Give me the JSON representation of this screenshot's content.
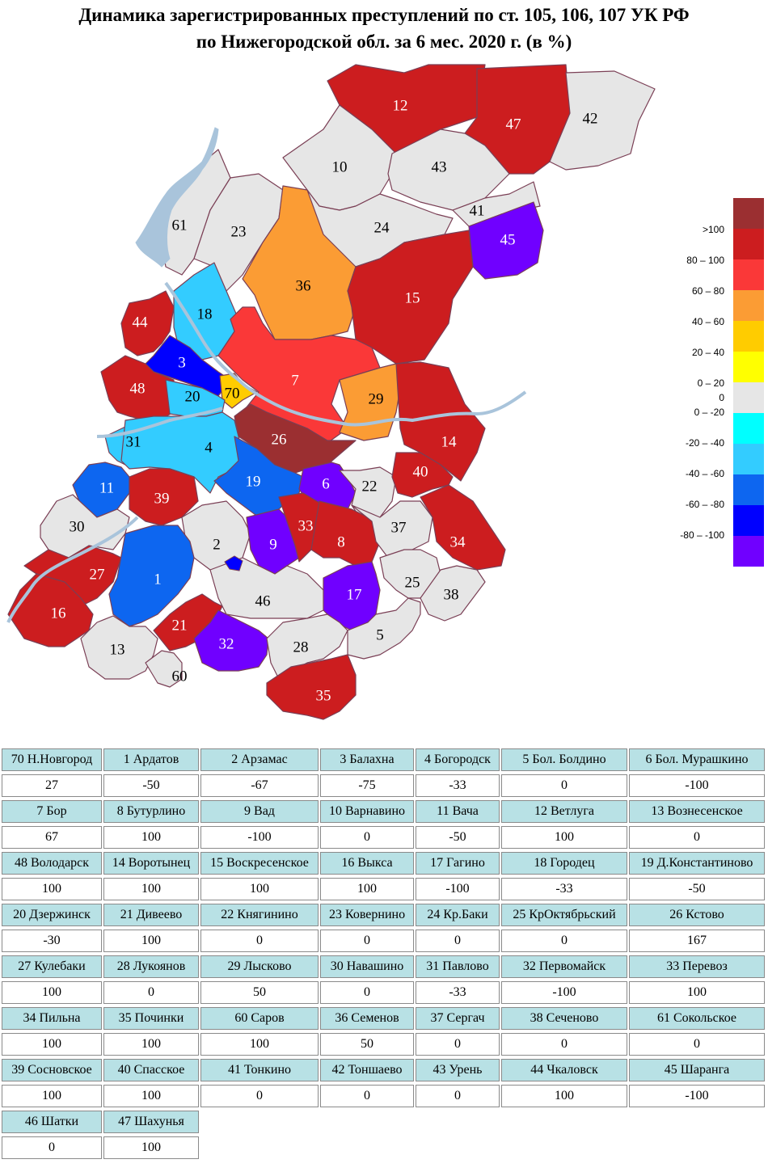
{
  "title": {
    "line1": "Динамика зарегистрированных преступлений по ст. 105, 106, 107 УК РФ",
    "line2": "по Нижегородской обл. за 6 мес. 2020 г. (в %)"
  },
  "colors": {
    "gt100": "#9b2f31",
    "p80_100": "#cc1d1f",
    "p60_80": "#fa3838",
    "p40_60": "#fb9c34",
    "p20_40": "#ffcc00",
    "p0_20": "#ffff00",
    "zero": "#e6e6e6",
    "m0_20": "#00ffff",
    "m20_40": "#33ccff",
    "m40_60": "#0d66f0",
    "m60_80": "#0000ff",
    "m80_100": "#7000ff",
    "water": "#a9c4db",
    "border": "#7a3f55"
  },
  "legend": [
    {
      "label": ">100",
      "color": "#9b2f31"
    },
    {
      "label": "80 – 100",
      "color": "#cc1d1f"
    },
    {
      "label": "60 – 80",
      "color": "#fa3838"
    },
    {
      "label": "40 – 60",
      "color": "#fb9c34"
    },
    {
      "label": "20 – 40",
      "color": "#ffcc00"
    },
    {
      "label": "0 – 20",
      "color": "#ffff00"
    },
    {
      "label": "0",
      "color": "#e6e6e6"
    },
    {
      "label": "0 – -20",
      "color": "#00ffff"
    },
    {
      "label": "-20 – -40",
      "color": "#33ccff"
    },
    {
      "label": "-40 – -60",
      "color": "#0d66f0"
    },
    {
      "label": "-60 – -80",
      "color": "#0000ff"
    },
    {
      "label": "-80 – -100",
      "color": "#7000ff"
    }
  ],
  "map_labels": [
    "12",
    "47",
    "42",
    "10",
    "43",
    "41",
    "45",
    "61",
    "23",
    "24",
    "36",
    "15",
    "18",
    "44",
    "3",
    "70",
    "7",
    "29",
    "48",
    "20",
    "26",
    "14",
    "31",
    "4",
    "19",
    "6",
    "22",
    "40",
    "11",
    "39",
    "30",
    "2",
    "9",
    "33",
    "8",
    "37",
    "34",
    "27",
    "1",
    "46",
    "17",
    "25",
    "38",
    "16",
    "21",
    "32",
    "28",
    "5",
    "13",
    "60",
    "35"
  ],
  "districts": [
    {
      "name": "70 Н.Новгород",
      "value": "27"
    },
    {
      "name": "1 Ардатов",
      "value": "-50"
    },
    {
      "name": "2 Арзамас",
      "value": "-67"
    },
    {
      "name": "3 Балахна",
      "value": "-75"
    },
    {
      "name": "4 Богородск",
      "value": "-33"
    },
    {
      "name": "5 Бол. Болдино",
      "value": "0"
    },
    {
      "name": "6 Бол. Мурашкино",
      "value": "-100"
    },
    {
      "name": "7 Бор",
      "value": "67"
    },
    {
      "name": "8 Бутурлино",
      "value": "100"
    },
    {
      "name": "9 Вад",
      "value": "-100"
    },
    {
      "name": "10 Варнавино",
      "value": "0"
    },
    {
      "name": "11 Вача",
      "value": "-50"
    },
    {
      "name": "12 Ветлуга",
      "value": "100"
    },
    {
      "name": "13 Вознесенское",
      "value": "0"
    },
    {
      "name": "48 Володарск",
      "value": "100"
    },
    {
      "name": "14 Воротынец",
      "value": "100"
    },
    {
      "name": "15 Воскресенское",
      "value": "100"
    },
    {
      "name": "16 Выкса",
      "value": "100"
    },
    {
      "name": "17 Гагино",
      "value": "-100"
    },
    {
      "name": "18 Городец",
      "value": "-33"
    },
    {
      "name": "19 Д.Константиново",
      "value": "-50"
    },
    {
      "name": "20 Дзержинск",
      "value": "-30"
    },
    {
      "name": "21 Дивеево",
      "value": "100"
    },
    {
      "name": "22 Княгинино",
      "value": "0"
    },
    {
      "name": "23 Ковернино",
      "value": "0"
    },
    {
      "name": "24 Кр.Баки",
      "value": "0"
    },
    {
      "name": "25 КрОктябрьский",
      "value": "0"
    },
    {
      "name": "26 Кстово",
      "value": "167"
    },
    {
      "name": "27 Кулебаки",
      "value": "100"
    },
    {
      "name": "28 Лукоянов",
      "value": "0"
    },
    {
      "name": "29 Лысково",
      "value": "50"
    },
    {
      "name": "30 Навашино",
      "value": "0"
    },
    {
      "name": "31 Павлово",
      "value": "-33"
    },
    {
      "name": "32 Первомайск",
      "value": "-100"
    },
    {
      "name": "33 Перевоз",
      "value": "100"
    },
    {
      "name": "34 Пильна",
      "value": "100"
    },
    {
      "name": "35 Починки",
      "value": "100"
    },
    {
      "name": "60 Саров",
      "value": "100"
    },
    {
      "name": "36 Семенов",
      "value": "50"
    },
    {
      "name": "37 Сергач",
      "value": "0"
    },
    {
      "name": "38 Сеченово",
      "value": "0"
    },
    {
      "name": "61 Сокольское",
      "value": "0"
    },
    {
      "name": "39 Сосновское",
      "value": "100"
    },
    {
      "name": "40 Спасское",
      "value": "100"
    },
    {
      "name": "41 Тонкино",
      "value": "0"
    },
    {
      "name": "42 Тоншаево",
      "value": "0"
    },
    {
      "name": "43 Урень",
      "value": "0"
    },
    {
      "name": "44 Чкаловск",
      "value": "100"
    },
    {
      "name": "45 Шаранга",
      "value": "-100"
    },
    {
      "name": "46 Шатки",
      "value": "0"
    },
    {
      "name": "47 Шахунья",
      "value": "100"
    }
  ]
}
